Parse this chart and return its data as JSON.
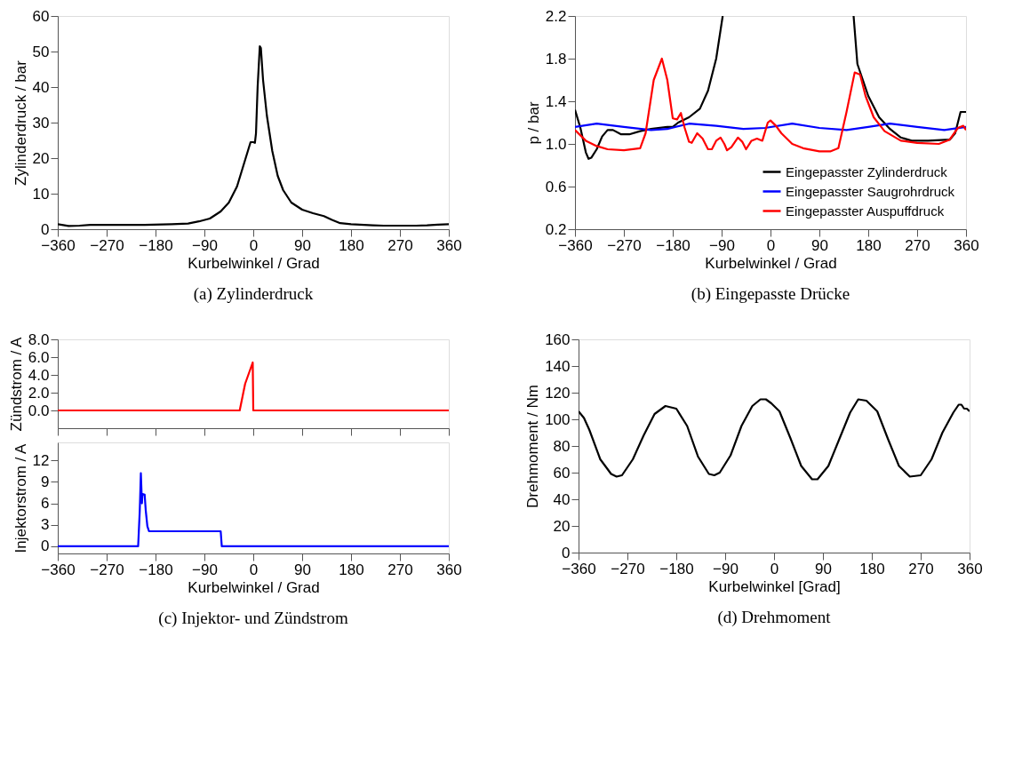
{
  "chart_data": [
    {
      "type": "line",
      "title": "(a)  Zylinderdruck",
      "xlabel": "Kurbelwinkel / Grad",
      "ylabel": "Zylinderdruck / bar",
      "xlim": [
        -360,
        360
      ],
      "xticks": [
        -360,
        -270,
        -180,
        -90,
        0,
        90,
        180,
        270,
        360
      ],
      "ylim": [
        0,
        60
      ],
      "yticks": [
        0,
        10,
        20,
        30,
        40,
        50,
        60
      ],
      "series": [
        {
          "color": "#000000",
          "x": [
            -360,
            -340,
            -320,
            -300,
            -200,
            -150,
            -120,
            -100,
            -80,
            -60,
            -45,
            -30,
            -20,
            -10,
            -5,
            0,
            3,
            5,
            8,
            12,
            14,
            18,
            25,
            35,
            45,
            55,
            70,
            90,
            110,
            130,
            145,
            160,
            180,
            220,
            240,
            300,
            320,
            340,
            360
          ],
          "values": [
            1.4,
            0.9,
            1.0,
            1.2,
            1.2,
            1.4,
            1.6,
            2.2,
            3.0,
            5.0,
            7.5,
            12,
            17,
            22,
            24.5,
            24.5,
            24.3,
            27,
            40,
            51.5,
            51,
            42,
            32,
            22,
            15,
            11,
            7.5,
            5.5,
            4.5,
            3.7,
            2.6,
            1.7,
            1.4,
            1.1,
            1.0,
            1.0,
            1.1,
            1.3,
            1.4
          ]
        }
      ]
    },
    {
      "type": "line",
      "title": "(b)  Eingepasste Drücke",
      "xlabel": "Kurbelwinkel / Grad",
      "ylabel": "p / bar",
      "xlim": [
        -360,
        360
      ],
      "xticks": [
        -360,
        -270,
        -180,
        -90,
        0,
        90,
        180,
        270,
        360
      ],
      "ylim": [
        0.2,
        2.2
      ],
      "yticks": [
        0.2,
        0.6,
        {
          "value": 1.0,
          "label": "1.0"
        },
        1.4,
        1.8,
        2.2
      ],
      "legend": "bottom right",
      "series": [
        {
          "name": "Eingepasster Zylinderdruck",
          "color": "#000000",
          "x": [
            -360,
            -350,
            -340,
            -335,
            -330,
            -320,
            -310,
            -300,
            -290,
            -275,
            -260,
            -240,
            -220,
            -190,
            -180,
            -170,
            -150,
            -130,
            -115,
            -100,
            -88,
            0,
            153,
            160,
            170,
            180,
            200,
            220,
            240,
            260,
            290,
            330,
            340,
            350,
            360
          ],
          "values": [
            1.32,
            1.15,
            0.92,
            0.86,
            0.87,
            0.95,
            1.07,
            1.13,
            1.13,
            1.09,
            1.09,
            1.12,
            1.14,
            1.16,
            1.16,
            1.2,
            1.25,
            1.33,
            1.5,
            1.8,
            2.2,
            null,
            2.2,
            1.75,
            1.6,
            1.45,
            1.25,
            1.14,
            1.06,
            1.03,
            1.03,
            1.04,
            1.1,
            1.3,
            1.3
          ]
        },
        {
          "name": "Eingepasster Saugrohrdruck",
          "color": "#0000ff",
          "x": [
            -360,
            -320,
            -270,
            -220,
            -190,
            -150,
            -100,
            -50,
            -10,
            40,
            90,
            140,
            180,
            220,
            270,
            320,
            360
          ],
          "values": [
            1.16,
            1.19,
            1.16,
            1.13,
            1.14,
            1.19,
            1.17,
            1.14,
            1.15,
            1.19,
            1.15,
            1.13,
            1.16,
            1.19,
            1.16,
            1.13,
            1.16
          ]
        },
        {
          "name": "Eingepasster Auspuffdruck",
          "color": "#ff0000",
          "x": [
            -360,
            -340,
            -320,
            -300,
            -270,
            -240,
            -230,
            -215,
            -200,
            -190,
            -180,
            -172,
            -165,
            -158,
            -150,
            -145,
            -135,
            -125,
            -115,
            -108,
            -100,
            -92,
            -85,
            -80,
            -72,
            -60,
            -52,
            -45,
            -35,
            -25,
            -15,
            -5,
            0,
            10,
            20,
            40,
            60,
            90,
            110,
            125,
            140,
            155,
            165,
            175,
            190,
            210,
            240,
            270,
            310,
            330,
            345,
            355,
            360
          ],
          "values": [
            1.13,
            1.03,
            0.98,
            0.95,
            0.94,
            0.96,
            1.1,
            1.6,
            1.8,
            1.6,
            1.24,
            1.23,
            1.29,
            1.15,
            1.02,
            1.01,
            1.1,
            1.05,
            0.95,
            0.95,
            1.03,
            1.06,
            1.0,
            0.94,
            0.97,
            1.06,
            1.02,
            0.95,
            1.03,
            1.05,
            1.03,
            1.2,
            1.22,
            1.17,
            1.1,
            1.0,
            0.96,
            0.93,
            0.93,
            0.96,
            1.3,
            1.67,
            1.65,
            1.45,
            1.25,
            1.12,
            1.03,
            1.01,
            1.0,
            1.04,
            1.15,
            1.17,
            1.13
          ]
        }
      ]
    },
    {
      "type": "line",
      "ylabel": "Zündstrom / A",
      "xlim": [
        -360,
        360
      ],
      "xticks": [
        -360,
        -270,
        -180,
        -90,
        0,
        90,
        180,
        270,
        360
      ],
      "ylim": [
        -2,
        8
      ],
      "yticks": [
        {
          "value": 0,
          "label": "0.0"
        },
        {
          "value": 2,
          "label": "2.0"
        },
        {
          "value": 4,
          "label": "4.0"
        },
        {
          "value": 6,
          "label": "6.0"
        },
        {
          "value": 8,
          "label": "8.0"
        }
      ],
      "tick_labels": "y",
      "series": [
        {
          "color": "#ff0000",
          "x": [
            -360,
            -25,
            -20,
            -15,
            -8,
            -1,
            0,
            360
          ],
          "values": [
            0,
            0,
            1.5,
            3.0,
            4.2,
            5.4,
            0,
            0
          ]
        }
      ]
    },
    {
      "type": "line",
      "title": "(c)  Injektor- und Zündstrom",
      "xlabel": "Kurbelwinkel / Grad",
      "ylabel": "Injektorstrom / A",
      "xlim": [
        -360,
        360
      ],
      "xticks": [
        -360,
        -270,
        -180,
        -90,
        0,
        90,
        180,
        270,
        360
      ],
      "ylim": [
        -1,
        14.5
      ],
      "yticks": [
        0,
        3,
        6,
        9,
        12
      ],
      "series": [
        {
          "color": "#0000ff",
          "x": [
            -360,
            -212,
            -209,
            -207,
            -205,
            -204,
            -200,
            -198,
            -195,
            -192,
            -60,
            -58,
            360
          ],
          "values": [
            0,
            0,
            5,
            10.2,
            6,
            7.3,
            7.2,
            5,
            2.8,
            2.1,
            2.1,
            0,
            0
          ]
        }
      ]
    },
    {
      "type": "line",
      "title": "(d)  Drehmoment",
      "xlabel": "Kurbelwinkel [Grad]",
      "ylabel": "Drehmoment / Nm",
      "xlim": [
        -360,
        360
      ],
      "xticks": [
        -360,
        -270,
        -180,
        -90,
        0,
        90,
        180,
        270,
        360
      ],
      "ylim": [
        0,
        160
      ],
      "yticks": [
        0,
        20,
        40,
        60,
        80,
        100,
        120,
        140,
        160
      ],
      "series": [
        {
          "color": "#000000",
          "x": [
            -360,
            -350,
            -340,
            -320,
            -300,
            -290,
            -280,
            -260,
            -240,
            -220,
            -200,
            -190,
            -180,
            -160,
            -140,
            -120,
            -110,
            -100,
            -80,
            -60,
            -40,
            -25,
            -15,
            -5,
            10,
            30,
            50,
            70,
            80,
            100,
            120,
            140,
            155,
            170,
            190,
            210,
            230,
            250,
            270,
            290,
            310,
            330,
            340,
            345,
            350,
            355,
            360
          ],
          "values": [
            106,
            101,
            92,
            70,
            59,
            57,
            58,
            70,
            88,
            104,
            110,
            109,
            108,
            95,
            72,
            59,
            58,
            60,
            73,
            95,
            110,
            115,
            115,
            112,
            106,
            86,
            65,
            55,
            55,
            65,
            85,
            105,
            115,
            114,
            106,
            85,
            65,
            57,
            58,
            70,
            90,
            105,
            111,
            111,
            108,
            108,
            106
          ]
        }
      ]
    }
  ]
}
